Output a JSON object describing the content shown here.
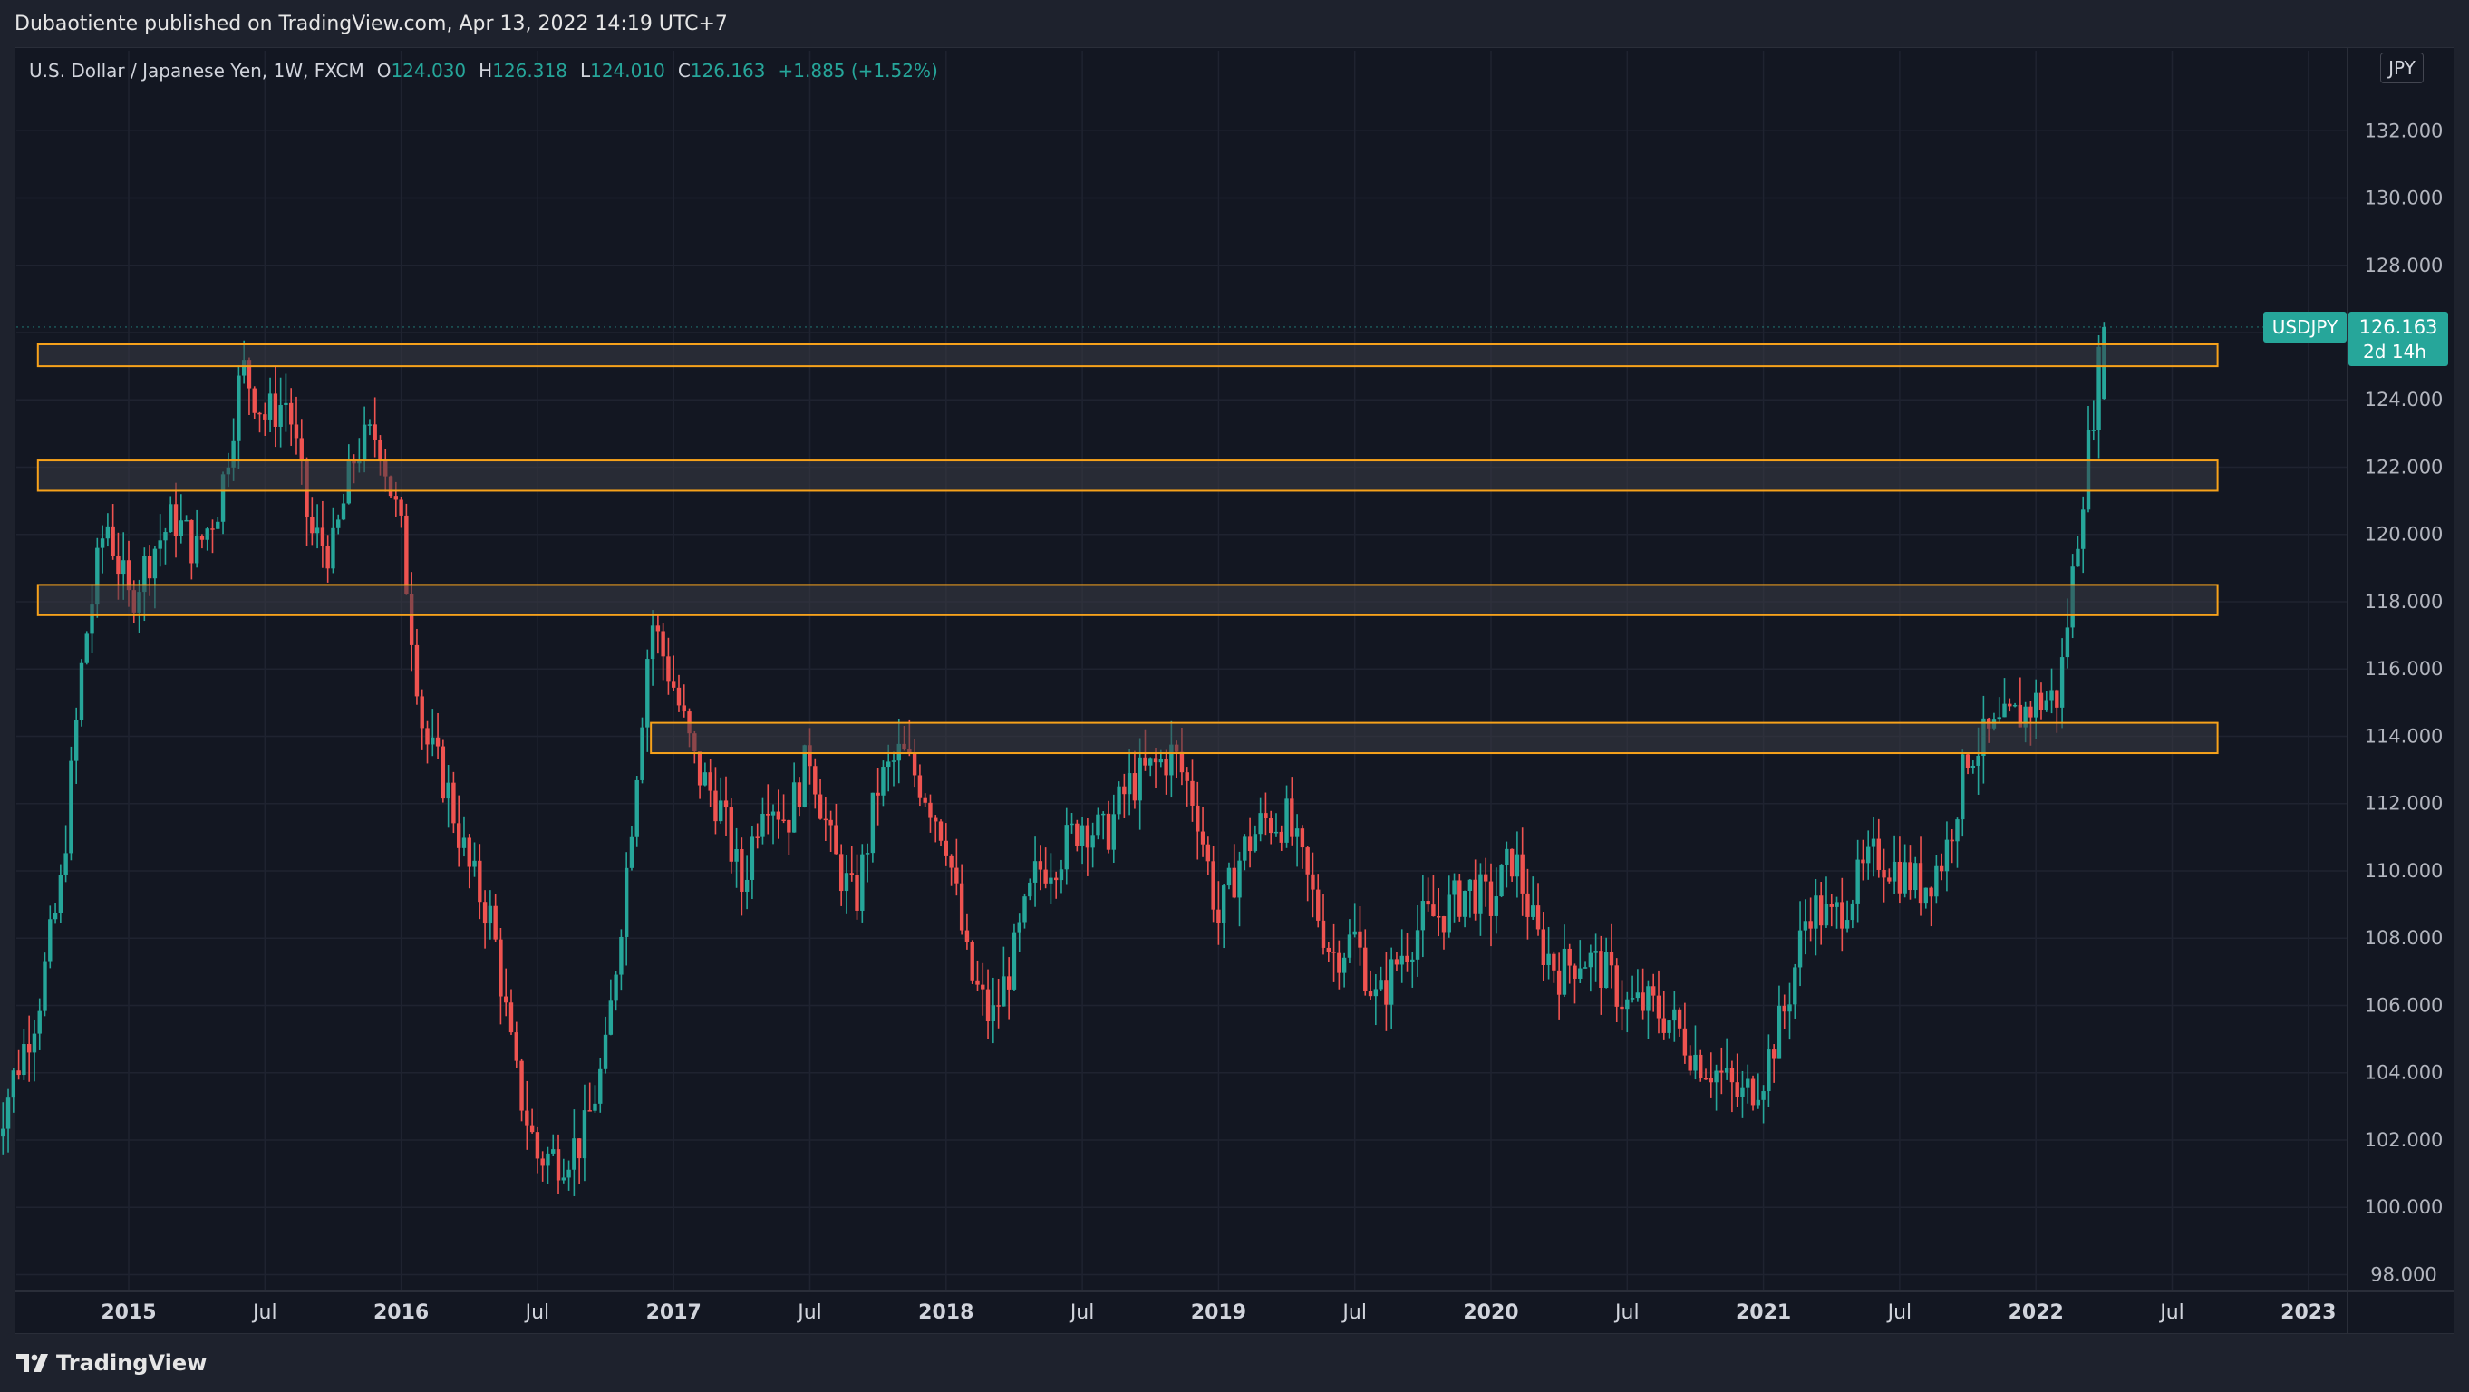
{
  "publisher": {
    "text": "Dubaotiente published on TradingView.com, Apr 13, 2022 14:19 UTC+7"
  },
  "legend": {
    "symbol": "U.S. Dollar / Japanese Yen, 1W, FXCM",
    "open_label": "O",
    "open": "124.030",
    "high_label": "H",
    "high": "126.318",
    "low_label": "L",
    "low": "124.010",
    "close_label": "C",
    "close": "126.163",
    "change": "+1.885 (+1.52%)"
  },
  "currency_button": {
    "label": "JPY"
  },
  "price_tag": {
    "ticker": "USDJPY",
    "price": "126.163",
    "countdown": "2d 14h",
    "color": "#26a69a"
  },
  "footer": {
    "brand": "TradingView"
  },
  "colors": {
    "up": "#26a69a",
    "down": "#ef5350",
    "zone_border": "#f7a21b",
    "zone_fill": "#3a3c45",
    "background": "#131722",
    "grid": "#1f2330"
  },
  "chart_data": {
    "type": "candlestick",
    "symbol": "USDJPY",
    "timeframe": "1W",
    "ylim": [
      97.5,
      133.3
    ],
    "y_ticks": [
      "98.000",
      "100.000",
      "102.000",
      "104.000",
      "106.000",
      "108.000",
      "110.000",
      "112.000",
      "114.000",
      "116.000",
      "118.000",
      "120.000",
      "122.000",
      "124.000",
      "126.000",
      "128.000",
      "130.000",
      "132.000"
    ],
    "x_ticks": [
      "2015",
      "Jul",
      "2016",
      "Jul",
      "2017",
      "Jul",
      "2018",
      "Jul",
      "2019",
      "Jul",
      "2020",
      "Jul",
      "2021",
      "Jul",
      "2022",
      "Jul",
      "2023"
    ],
    "zones": [
      {
        "from": 125.0,
        "to": 125.65,
        "start": "2014-09",
        "end": "2022-09"
      },
      {
        "from": 121.3,
        "to": 122.2,
        "start": "2014-09",
        "end": "2022-09"
      },
      {
        "from": 117.6,
        "to": 118.5,
        "start": "2014-09",
        "end": "2022-09"
      },
      {
        "from": 113.5,
        "to": 114.4,
        "start": "2016-12",
        "end": "2022-09"
      }
    ],
    "path": [
      [
        "2014-07",
        102.0
      ],
      [
        "2014-09",
        106.0
      ],
      [
        "2014-10",
        109.5
      ],
      [
        "2014-11",
        116.5
      ],
      [
        "2014-12",
        120.5
      ],
      [
        "2015-01",
        118.0
      ],
      [
        "2015-02",
        119.5
      ],
      [
        "2015-03",
        120.5
      ],
      [
        "2015-04",
        119.5
      ],
      [
        "2015-05",
        121.0
      ],
      [
        "2015-06",
        125.0
      ],
      [
        "2015-07",
        123.5
      ],
      [
        "2015-08",
        124.0
      ],
      [
        "2015-09",
        120.0
      ],
      [
        "2015-10",
        119.5
      ],
      [
        "2015-11",
        122.5
      ],
      [
        "2015-12",
        123.0
      ],
      [
        "2016-01",
        120.0
      ],
      [
        "2016-02",
        114.0
      ],
      [
        "2016-03",
        112.5
      ],
      [
        "2016-04",
        110.0
      ],
      [
        "2016-05",
        108.5
      ],
      [
        "2016-06",
        104.0
      ],
      [
        "2016-07",
        101.5
      ],
      [
        "2016-08",
        101.5
      ],
      [
        "2016-09",
        102.0
      ],
      [
        "2016-10",
        104.5
      ],
      [
        "2016-11",
        110.5
      ],
      [
        "2016-12",
        117.5
      ],
      [
        "2017-01",
        115.5
      ],
      [
        "2017-02",
        113.0
      ],
      [
        "2017-03",
        112.0
      ],
      [
        "2017-04",
        109.5
      ],
      [
        "2017-05",
        112.5
      ],
      [
        "2017-06",
        111.5
      ],
      [
        "2017-07",
        113.5
      ],
      [
        "2017-08",
        110.5
      ],
      [
        "2017-09",
        109.0
      ],
      [
        "2017-10",
        112.5
      ],
      [
        "2017-11",
        113.5
      ],
      [
        "2017-12",
        112.5
      ],
      [
        "2018-01",
        111.0
      ],
      [
        "2018-02",
        107.0
      ],
      [
        "2018-03",
        105.5
      ],
      [
        "2018-04",
        107.5
      ],
      [
        "2018-05",
        110.0
      ],
      [
        "2018-06",
        110.5
      ],
      [
        "2018-07",
        111.5
      ],
      [
        "2018-08",
        111.0
      ],
      [
        "2018-09",
        112.5
      ],
      [
        "2018-10",
        113.0
      ],
      [
        "2018-11",
        113.5
      ],
      [
        "2018-12",
        112.0
      ],
      [
        "2019-01",
        108.5
      ],
      [
        "2019-02",
        110.5
      ],
      [
        "2019-03",
        111.5
      ],
      [
        "2019-04",
        111.5
      ],
      [
        "2019-05",
        109.5
      ],
      [
        "2019-06",
        107.5
      ],
      [
        "2019-07",
        108.0
      ],
      [
        "2019-08",
        106.0
      ],
      [
        "2019-09",
        107.5
      ],
      [
        "2019-10",
        108.5
      ],
      [
        "2019-11",
        108.8
      ],
      [
        "2019-12",
        109.5
      ],
      [
        "2020-01",
        109.0
      ],
      [
        "2020-02",
        110.5
      ],
      [
        "2020-03",
        108.0
      ],
      [
        "2020-04",
        107.0
      ],
      [
        "2020-05",
        107.5
      ],
      [
        "2020-06",
        107.0
      ],
      [
        "2020-07",
        106.0
      ],
      [
        "2020-08",
        106.0
      ],
      [
        "2020-09",
        105.5
      ],
      [
        "2020-10",
        104.5
      ],
      [
        "2020-11",
        104.0
      ],
      [
        "2020-12",
        103.2
      ],
      [
        "2021-01",
        104.0
      ],
      [
        "2021-02",
        106.0
      ],
      [
        "2021-03",
        109.0
      ],
      [
        "2021-04",
        108.5
      ],
      [
        "2021-05",
        109.5
      ],
      [
        "2021-06",
        110.5
      ],
      [
        "2021-07",
        110.0
      ],
      [
        "2021-08",
        109.5
      ],
      [
        "2021-09",
        110.5
      ],
      [
        "2021-10",
        113.5
      ],
      [
        "2021-11",
        114.0
      ],
      [
        "2021-12",
        114.5
      ],
      [
        "2022-01",
        115.0
      ],
      [
        "2022-02",
        115.2
      ],
      [
        "2022-03",
        121.0
      ],
      [
        "2022-04",
        126.163
      ]
    ],
    "last_close": 126.163
  }
}
